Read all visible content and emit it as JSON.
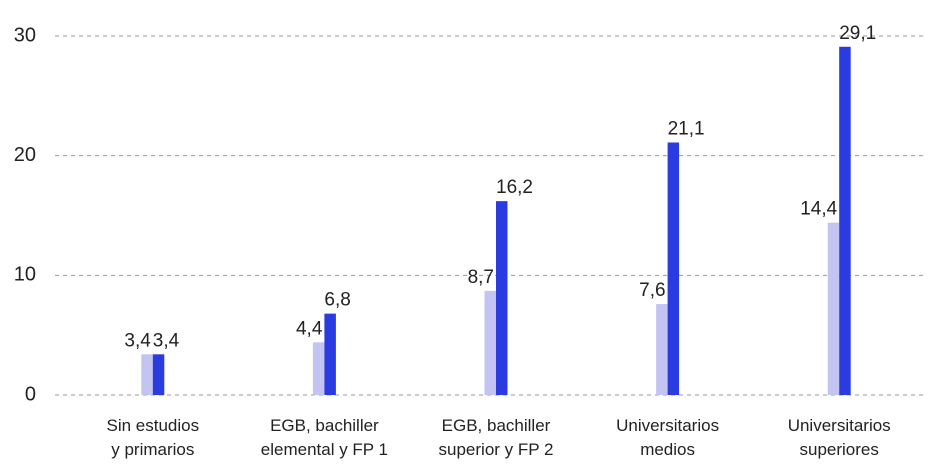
{
  "chart_data": {
    "type": "bar",
    "categories": [
      "Sin estudios\ny primarios",
      "EGB, bachiller\nelemental y FP 1",
      "EGB, bachiller\nsuperior y FP 2",
      "Universitarios\nmedios",
      "Universitarios\nsuperiores"
    ],
    "series": [
      {
        "color": "#c4c4f2",
        "values": [
          3.4,
          4.4,
          8.7,
          7.6,
          14.4
        ],
        "value_labels": [
          "3,4",
          "4,4",
          "8,7",
          "7,6",
          "14,4"
        ]
      },
      {
        "color": "#2a3ce0",
        "values": [
          3.4,
          6.8,
          16.2,
          21.1,
          29.1
        ],
        "value_labels": [
          "3,4",
          "6,8",
          "16,2",
          "21,1",
          "29,1"
        ]
      }
    ],
    "ylim": [
      0,
      30
    ],
    "yticks": [
      0,
      10,
      20,
      30
    ],
    "grid": true
  }
}
